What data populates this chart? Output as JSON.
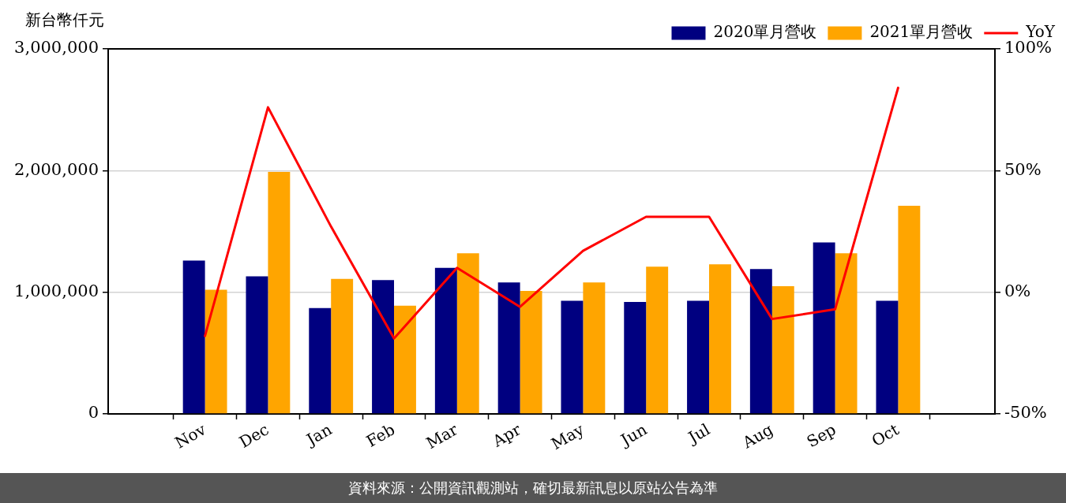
{
  "chart_data": {
    "type": "bar",
    "ylabel": "新台幣仟元",
    "categories": [
      "Nov",
      "Dec",
      "Jan",
      "Feb",
      "Mar",
      "Apr",
      "May",
      "Jun",
      "Jul",
      "Aug",
      "Sep",
      "Oct"
    ],
    "series": [
      {
        "name": "2020單月營收",
        "color": "#000080",
        "values": [
          1260000,
          1130000,
          870000,
          1100000,
          1200000,
          1080000,
          930000,
          920000,
          930000,
          1190000,
          1410000,
          930000
        ]
      },
      {
        "name": "2021單月營收",
        "color": "#ffa500",
        "values": [
          1020000,
          1990000,
          1110000,
          890000,
          1320000,
          1010000,
          1080000,
          1210000,
          1230000,
          1050000,
          1320000,
          1710000
        ]
      },
      {
        "name": "YoY",
        "type": "line",
        "axis": "y2",
        "color": "#ff0000",
        "values": [
          -18,
          76,
          27,
          -19,
          10,
          -6,
          17,
          31,
          31,
          -11,
          -7,
          84
        ]
      }
    ],
    "ylim": [
      0,
      3000000
    ],
    "yticks": [
      0,
      {
        "value": 1000000,
        "label": "1,000,000"
      },
      {
        "value": 2000000,
        "label": "2,000,000"
      },
      {
        "value": 3000000,
        "label": "3,000,000"
      }
    ],
    "y2lim": [
      -50,
      100
    ],
    "y2ticks": [
      {
        "value": -50,
        "label": "-50%"
      },
      {
        "value": 0,
        "label": "0%"
      },
      {
        "value": 50,
        "label": "50%"
      },
      {
        "value": 100,
        "label": "100%"
      }
    ],
    "grid": "y",
    "legend": "top right",
    "annotations": [
      "資料來源：公開資訊觀測站，確切最新訊息以原站公告為準"
    ]
  }
}
